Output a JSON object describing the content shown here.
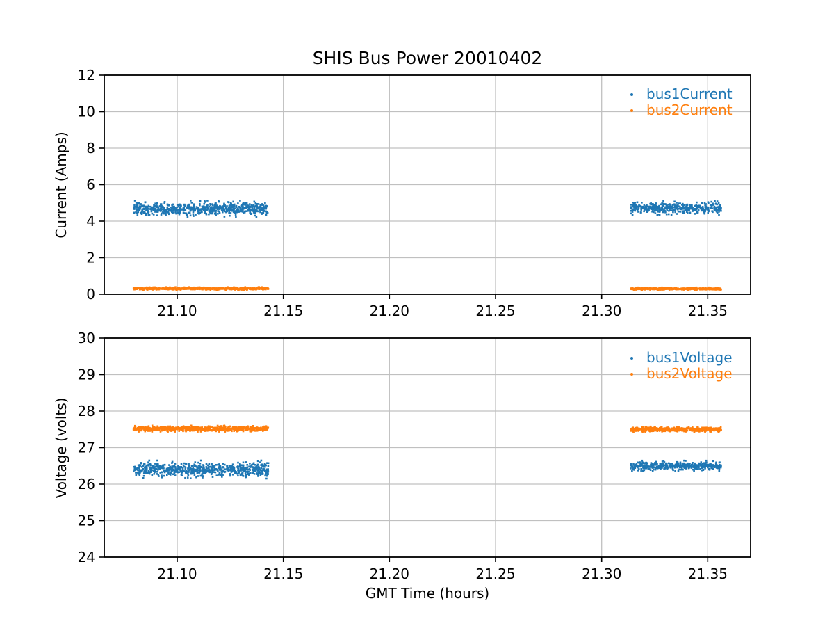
{
  "figure": {
    "background": "#ffffff",
    "text_color": "#000000"
  },
  "style": {
    "grid_color": "#c0c0c0",
    "spine_color": "#000000",
    "tick_color": "#000000",
    "blue": "#1f77b4",
    "orange": "#ff7f0e"
  },
  "chart_data": [
    {
      "type": "scatter",
      "title": "SHIS Bus Power 20010402",
      "ylabel": "Current (Amps)",
      "xlim": [
        21.0656,
        21.3702
      ],
      "ylim": [
        0,
        12
      ],
      "grid": true,
      "legend_position": "upper right",
      "legend_frame": false,
      "xticks": {
        "values": [
          21.1,
          21.15,
          21.2,
          21.25,
          21.3,
          21.35
        ],
        "labels": [
          "21.10",
          "21.15",
          "21.20",
          "21.25",
          "21.30",
          "21.35"
        ]
      },
      "yticks": {
        "values": [
          0,
          2,
          4,
          6,
          8,
          10,
          12
        ],
        "labels": [
          "0",
          "2",
          "4",
          "6",
          "8",
          "10",
          "12"
        ]
      },
      "series": [
        {
          "name": "bus1Current",
          "color": "#1f77b4",
          "marker": "point",
          "segments": [
            {
              "x_start": 21.0794,
              "x_end": 21.143,
              "y_mean": 4.68,
              "y_sigma": 0.17,
              "n": 700
            },
            {
              "x_start": 21.3137,
              "x_end": 21.3563,
              "y_mean": 4.72,
              "y_sigma": 0.15,
              "n": 450
            }
          ]
        },
        {
          "name": "bus2Current",
          "color": "#ff7f0e",
          "marker": "point",
          "segments": [
            {
              "x_start": 21.0794,
              "x_end": 21.143,
              "y_mean": 0.31,
              "y_sigma": 0.032,
              "n": 700
            },
            {
              "x_start": 21.3137,
              "x_end": 21.3563,
              "y_mean": 0.3,
              "y_sigma": 0.028,
              "n": 450
            }
          ]
        }
      ]
    },
    {
      "type": "scatter",
      "ylabel": "Voltage (volts)",
      "xlabel": "GMT Time (hours)",
      "xlim": [
        21.0656,
        21.3702
      ],
      "ylim": [
        24,
        30
      ],
      "grid": true,
      "legend_position": "upper right",
      "legend_frame": false,
      "xticks": {
        "values": [
          21.1,
          21.15,
          21.2,
          21.25,
          21.3,
          21.35
        ],
        "labels": [
          "21.10",
          "21.15",
          "21.20",
          "21.25",
          "21.30",
          "21.35"
        ]
      },
      "yticks": {
        "values": [
          24,
          25,
          26,
          27,
          28,
          29,
          30
        ],
        "labels": [
          "24",
          "25",
          "26",
          "27",
          "28",
          "29",
          "30"
        ]
      },
      "series": [
        {
          "name": "bus1Voltage",
          "color": "#1f77b4",
          "marker": "point",
          "segments": [
            {
              "x_start": 21.0794,
              "x_end": 21.143,
              "y_mean": 26.4,
              "y_sigma": 0.095,
              "n": 700
            },
            {
              "x_start": 21.3137,
              "x_end": 21.3563,
              "y_mean": 26.5,
              "y_sigma": 0.055,
              "n": 450
            }
          ]
        },
        {
          "name": "bus2Voltage",
          "color": "#ff7f0e",
          "marker": "point",
          "segments": [
            {
              "x_start": 21.0794,
              "x_end": 21.143,
              "y_mean": 27.52,
              "y_sigma": 0.032,
              "n": 700
            },
            {
              "x_start": 21.3137,
              "x_end": 21.3563,
              "y_mean": 27.5,
              "y_sigma": 0.03,
              "n": 450
            }
          ]
        }
      ]
    }
  ]
}
